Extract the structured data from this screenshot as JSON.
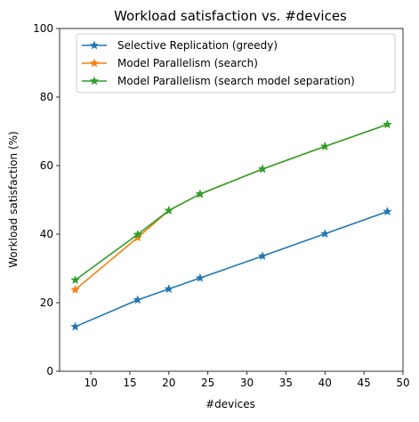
{
  "chart_data": {
    "type": "line",
    "title": "Workload satisfaction vs. #devices",
    "xlabel": "#devices",
    "ylabel": "Workload satisfaction (%)",
    "xlim": [
      6.0,
      50.0
    ],
    "ylim": [
      0,
      100
    ],
    "xticks": [
      10,
      15,
      20,
      25,
      30,
      35,
      40,
      45,
      50
    ],
    "yticks": [
      0,
      20,
      40,
      60,
      80,
      100
    ],
    "grid": false,
    "legend_position": "upper-left",
    "series": [
      {
        "name": "Selective Replication (greedy)",
        "color": "#1f77b4",
        "marker": "star",
        "x": [
          8,
          16,
          20,
          24,
          32,
          40,
          48
        ],
        "values": [
          13.0,
          20.8,
          24.0,
          27.2,
          33.6,
          40.1,
          46.6
        ]
      },
      {
        "name": "Model Parallelism (search)",
        "color": "#ff7f0e",
        "marker": "star",
        "x": [
          8,
          16,
          20,
          24,
          32,
          40,
          48
        ],
        "values": [
          23.8,
          39.0,
          46.9,
          51.7,
          59.0,
          65.6,
          72.0
        ]
      },
      {
        "name": "Model Parallelism (search model separation)",
        "color": "#2ca02c",
        "marker": "star",
        "x": [
          8,
          16,
          20,
          24,
          32,
          40,
          48
        ],
        "values": [
          26.6,
          39.9,
          46.9,
          51.7,
          59.0,
          65.6,
          72.0
        ]
      }
    ]
  }
}
